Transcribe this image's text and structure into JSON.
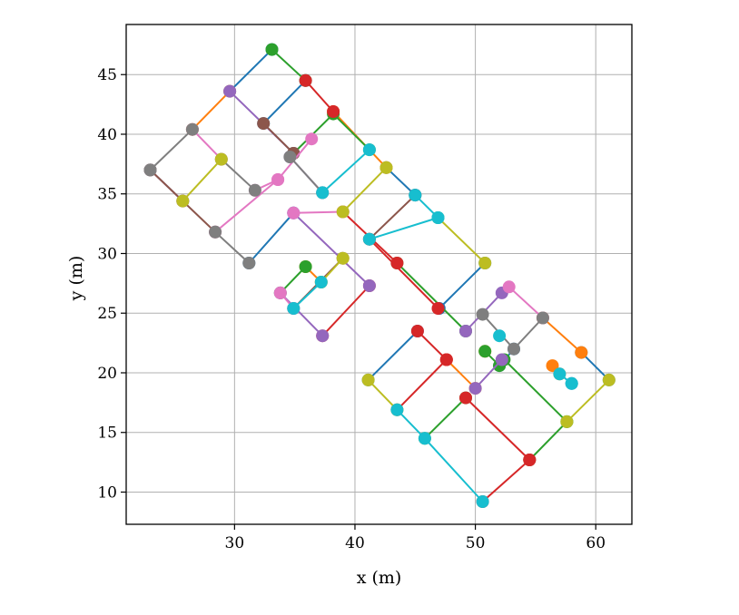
{
  "chart_data": {
    "type": "line",
    "title": "",
    "xlabel": "x (m)",
    "ylabel": "y (m)",
    "xlim": [
      21,
      63
    ],
    "ylim": [
      7.3,
      49.2
    ],
    "xticks": [
      30,
      40,
      50,
      60
    ],
    "yticks": [
      10,
      15,
      20,
      25,
      30,
      35,
      40,
      45
    ],
    "grid": true,
    "legend": "none",
    "marker": "circle",
    "palette": [
      "#1f77b4",
      "#ff7f0e",
      "#2ca02c",
      "#d62728",
      "#9467bd",
      "#8c564b",
      "#e377c2",
      "#7f7f7f",
      "#bcbd22",
      "#17becf"
    ],
    "series": [
      {
        "color": "#1f77b4",
        "values": [
          [
            29.6,
            43.6
          ],
          [
            33.1,
            47.1
          ]
        ]
      },
      {
        "color": "#1f77b4",
        "values": [
          [
            32.4,
            40.9
          ],
          [
            35.9,
            44.5
          ]
        ]
      },
      {
        "color": "#1f77b4",
        "values": [
          [
            42.6,
            37.2
          ],
          [
            45.0,
            34.9
          ]
        ]
      },
      {
        "color": "#1f77b4",
        "values": [
          [
            31.2,
            29.2
          ],
          [
            34.9,
            33.4
          ]
        ]
      },
      {
        "color": "#1f77b4",
        "values": [
          [
            47.0,
            25.4
          ],
          [
            50.8,
            29.2
          ]
        ]
      },
      {
        "color": "#1f77b4",
        "values": [
          [
            41.1,
            19.4
          ],
          [
            45.2,
            23.5
          ]
        ]
      },
      {
        "color": "#1f77b4",
        "values": [
          [
            58.8,
            21.7
          ],
          [
            61.1,
            19.4
          ]
        ]
      },
      {
        "color": "#1f77b4",
        "values": [
          [
            53.2,
            22.0
          ],
          [
            52.0,
            20.6
          ]
        ]
      },
      {
        "color": "#1f77b4",
        "values": [
          [
            58.0,
            19.1
          ]
        ]
      },
      {
        "color": "#ff7f0e",
        "values": [
          [
            26.5,
            40.4
          ],
          [
            29.6,
            43.6
          ]
        ]
      },
      {
        "color": "#ff7f0e",
        "values": [
          [
            38.2,
            41.9
          ],
          [
            42.6,
            37.2
          ]
        ]
      },
      {
        "color": "#ff7f0e",
        "values": [
          [
            35.9,
            28.9
          ],
          [
            37.2,
            27.6
          ]
        ]
      },
      {
        "color": "#ff7f0e",
        "values": [
          [
            55.6,
            24.6
          ],
          [
            58.8,
            21.7
          ]
        ]
      },
      {
        "color": "#ff7f0e",
        "values": [
          [
            47.6,
            21.1
          ],
          [
            50.0,
            18.7
          ]
        ]
      },
      {
        "color": "#ff7f0e",
        "values": [
          [
            50.8,
            21.8
          ]
        ]
      },
      {
        "color": "#ff7f0e",
        "values": [
          [
            56.4,
            20.6
          ],
          [
            57.0,
            19.9
          ]
        ]
      },
      {
        "color": "#2ca02c",
        "values": [
          [
            33.1,
            47.1
          ],
          [
            35.9,
            44.5
          ]
        ]
      },
      {
        "color": "#2ca02c",
        "values": [
          [
            34.9,
            38.4
          ],
          [
            38.2,
            41.7
          ],
          [
            41.2,
            38.7
          ]
        ]
      },
      {
        "color": "#2ca02c",
        "values": [
          [
            35.9,
            28.9
          ],
          [
            33.8,
            26.7
          ]
        ]
      },
      {
        "color": "#2ca02c",
        "values": [
          [
            43.5,
            29.2
          ],
          [
            49.2,
            23.5
          ]
        ]
      },
      {
        "color": "#2ca02c",
        "values": [
          [
            45.8,
            14.5
          ],
          [
            49.2,
            17.9
          ]
        ]
      },
      {
        "color": "#2ca02c",
        "values": [
          [
            50.8,
            21.8
          ],
          [
            52.0,
            20.6
          ]
        ]
      },
      {
        "color": "#2ca02c",
        "values": [
          [
            52.4,
            21.1
          ],
          [
            57.6,
            15.9
          ]
        ]
      },
      {
        "color": "#2ca02c",
        "values": [
          [
            54.5,
            12.7
          ],
          [
            57.6,
            15.9
          ]
        ]
      },
      {
        "color": "#d62728",
        "values": [
          [
            35.9,
            44.5
          ],
          [
            38.2,
            41.9
          ]
        ]
      },
      {
        "color": "#d62728",
        "values": [
          [
            39.0,
            33.5
          ],
          [
            43.5,
            29.2
          ]
        ]
      },
      {
        "color": "#d62728",
        "values": [
          [
            41.2,
            31.2
          ],
          [
            46.9,
            25.4
          ]
        ]
      },
      {
        "color": "#d62728",
        "values": [
          [
            37.3,
            23.1
          ],
          [
            41.2,
            27.3
          ]
        ]
      },
      {
        "color": "#d62728",
        "values": [
          [
            45.2,
            23.5
          ],
          [
            47.6,
            21.1
          ]
        ]
      },
      {
        "color": "#d62728",
        "values": [
          [
            43.5,
            16.9
          ],
          [
            47.6,
            21.1
          ]
        ]
      },
      {
        "color": "#d62728",
        "values": [
          [
            49.2,
            17.9
          ],
          [
            54.5,
            12.7
          ]
        ]
      },
      {
        "color": "#d62728",
        "values": [
          [
            50.6,
            9.2
          ],
          [
            54.5,
            12.7
          ]
        ]
      },
      {
        "color": "#9467bd",
        "values": [
          [
            23.0,
            37.0
          ],
          [
            25.7,
            34.4
          ]
        ]
      },
      {
        "color": "#9467bd",
        "values": [
          [
            29.6,
            43.6
          ],
          [
            34.9,
            38.4
          ]
        ]
      },
      {
        "color": "#9467bd",
        "values": [
          [
            34.6,
            38.1
          ],
          [
            37.3,
            35.1
          ]
        ]
      },
      {
        "color": "#9467bd",
        "values": [
          [
            34.9,
            33.4
          ],
          [
            41.2,
            27.3
          ]
        ]
      },
      {
        "color": "#9467bd",
        "values": [
          [
            33.8,
            26.7
          ],
          [
            37.3,
            23.1
          ]
        ]
      },
      {
        "color": "#9467bd",
        "values": [
          [
            49.2,
            23.5
          ],
          [
            52.2,
            26.7
          ]
        ]
      },
      {
        "color": "#9467bd",
        "values": [
          [
            50.0,
            18.7
          ],
          [
            52.2,
            21.1
          ]
        ]
      },
      {
        "color": "#8c564b",
        "values": [
          [
            23.0,
            37.0
          ],
          [
            25.7,
            34.4
          ],
          [
            28.4,
            31.8
          ]
        ]
      },
      {
        "color": "#8c564b",
        "values": [
          [
            32.4,
            40.9
          ],
          [
            34.9,
            38.4
          ]
        ]
      },
      {
        "color": "#8c564b",
        "values": [
          [
            41.2,
            31.2
          ],
          [
            45.0,
            34.9
          ]
        ]
      },
      {
        "color": "#8c564b",
        "values": [
          [
            34.9,
            25.4
          ],
          [
            39.0,
            29.6
          ]
        ]
      },
      {
        "color": "#e377c2",
        "values": [
          [
            26.5,
            40.4
          ],
          [
            28.9,
            37.9
          ]
        ]
      },
      {
        "color": "#e377c2",
        "values": [
          [
            31.7,
            35.3
          ],
          [
            33.6,
            36.2
          ],
          [
            36.4,
            39.6
          ]
        ]
      },
      {
        "color": "#e377c2",
        "values": [
          [
            28.4,
            31.8
          ],
          [
            33.6,
            36.2
          ]
        ]
      },
      {
        "color": "#e377c2",
        "values": [
          [
            34.9,
            33.4
          ],
          [
            39.0,
            33.5
          ]
        ]
      },
      {
        "color": "#e377c2",
        "values": [
          [
            33.8,
            26.7
          ],
          [
            34.9,
            25.4
          ]
        ]
      },
      {
        "color": "#e377c2",
        "values": [
          [
            52.8,
            27.2
          ],
          [
            55.6,
            24.6
          ]
        ]
      },
      {
        "color": "#7f7f7f",
        "values": [
          [
            23.0,
            37.0
          ],
          [
            26.5,
            40.4
          ]
        ]
      },
      {
        "color": "#7f7f7f",
        "values": [
          [
            28.9,
            37.9
          ],
          [
            31.7,
            35.3
          ]
        ]
      },
      {
        "color": "#7f7f7f",
        "values": [
          [
            34.6,
            38.1
          ],
          [
            37.3,
            35.1
          ]
        ]
      },
      {
        "color": "#7f7f7f",
        "values": [
          [
            28.4,
            31.8
          ],
          [
            31.2,
            29.2
          ]
        ]
      },
      {
        "color": "#7f7f7f",
        "values": [
          [
            50.6,
            24.9
          ],
          [
            53.2,
            22.0
          ],
          [
            55.6,
            24.6
          ]
        ]
      },
      {
        "color": "#bcbd22",
        "values": [
          [
            25.7,
            34.4
          ],
          [
            28.9,
            37.9
          ]
        ]
      },
      {
        "color": "#bcbd22",
        "values": [
          [
            39.0,
            33.5
          ],
          [
            42.6,
            37.2
          ]
        ]
      },
      {
        "color": "#bcbd22",
        "values": [
          [
            37.2,
            27.6
          ],
          [
            39.0,
            29.6
          ]
        ]
      },
      {
        "color": "#bcbd22",
        "values": [
          [
            46.9,
            33.0
          ],
          [
            50.8,
            29.2
          ]
        ]
      },
      {
        "color": "#bcbd22",
        "values": [
          [
            41.1,
            19.4
          ],
          [
            43.5,
            16.9
          ]
        ]
      },
      {
        "color": "#bcbd22",
        "values": [
          [
            57.6,
            15.9
          ],
          [
            61.1,
            19.4
          ]
        ]
      },
      {
        "color": "#17becf",
        "values": [
          [
            37.3,
            35.1
          ],
          [
            41.2,
            38.7
          ]
        ]
      },
      {
        "color": "#17becf",
        "values": [
          [
            41.2,
            31.2
          ],
          [
            46.9,
            33.0
          ]
        ]
      },
      {
        "color": "#17becf",
        "values": [
          [
            45.0,
            34.9
          ],
          [
            46.9,
            33.0
          ]
        ]
      },
      {
        "color": "#17becf",
        "values": [
          [
            34.9,
            25.4
          ],
          [
            37.2,
            27.6
          ]
        ]
      },
      {
        "color": "#17becf",
        "values": [
          [
            43.5,
            16.9
          ],
          [
            45.8,
            14.5
          ],
          [
            50.6,
            9.2
          ]
        ]
      },
      {
        "color": "#17becf",
        "values": [
          [
            52.0,
            23.1
          ]
        ]
      },
      {
        "color": "#17becf",
        "values": [
          [
            57.0,
            19.9
          ],
          [
            58.0,
            19.1
          ]
        ]
      }
    ]
  }
}
